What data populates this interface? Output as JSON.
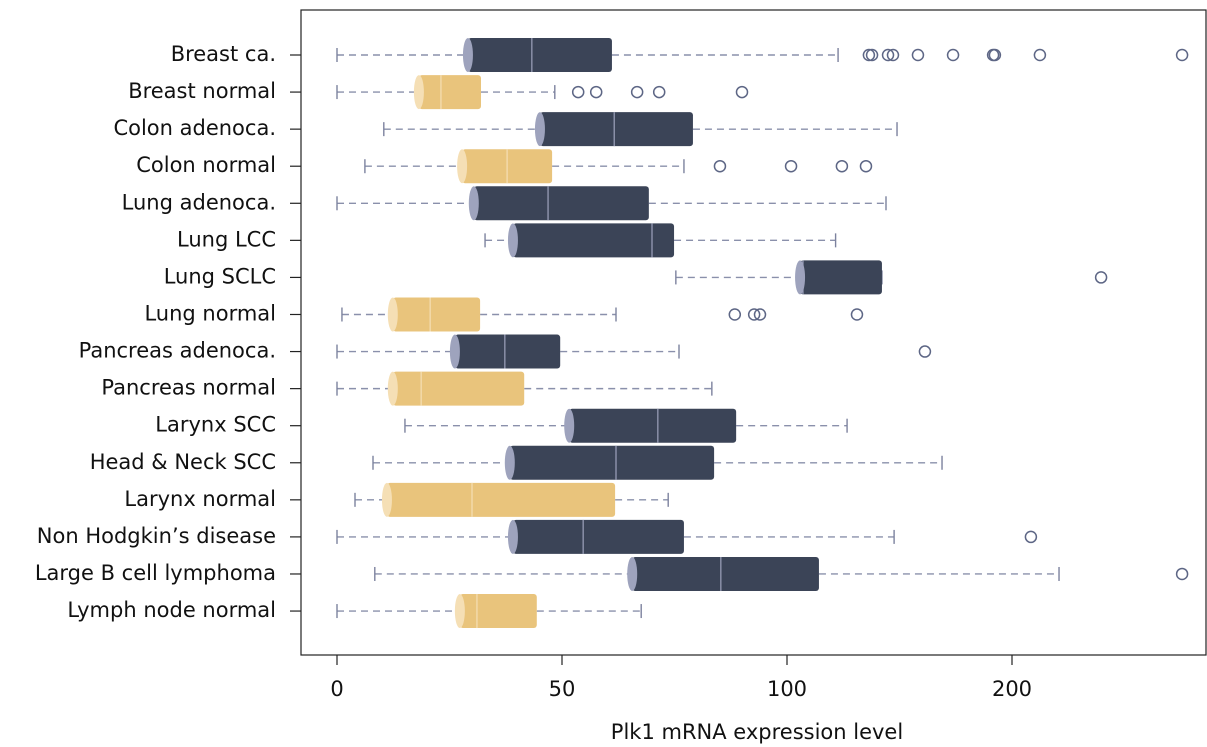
{
  "chart_data": {
    "type": "box",
    "orientation": "horizontal",
    "x_label": "Plk1 mRNA expression level",
    "categories": [
      "Breast ca.",
      "Breast normal",
      "Colon adenoca.",
      "Colon normal",
      "Lung adenoca.",
      "Lung LCC",
      "Lung SCLC",
      "Lung normal",
      "Pancreas adenoca.",
      "Pancreas normal",
      "Larynx SCC",
      "Head & Neck SCC",
      "Larynx normal",
      "Non Hodgkin’s disease",
      "Large B cell lymphoma",
      "Lymph node normal"
    ],
    "colors": [
      "#3b4457",
      "#e9c47c",
      "#3b4457",
      "#e9c47c",
      "#3b4457",
      "#3b4457",
      "#3b4457",
      "#e9c47c",
      "#3b4457",
      "#e9c47c",
      "#3b4457",
      "#3b4457",
      "#e9c47c",
      "#3b4457",
      "#3b4457",
      "#e9c47c"
    ],
    "boxes": [
      {
        "low": 0,
        "q1": 29.1,
        "median": 43.3,
        "q3": 61.1,
        "high": 122.7,
        "outliers": [
          136.4,
          137.8,
          144.9,
          147.1,
          158.2,
          173.8,
          191.6,
          192.4,
          212.4,
          275.6
        ]
      },
      {
        "low": 0,
        "q1": 18.2,
        "median": 23.1,
        "q3": 32,
        "high": 48.4,
        "outliers": [
          53.6,
          57.6,
          66.7,
          71.6,
          90
        ]
      },
      {
        "low": 10.4,
        "q1": 45.1,
        "median": 61.6,
        "q3": 79.1,
        "high": 148.9,
        "outliers": []
      },
      {
        "low": 6.2,
        "q1": 27.8,
        "median": 37.8,
        "q3": 47.8,
        "high": 77.1,
        "outliers": [
          85.1,
          101.8,
          124.4,
          135.1
        ]
      },
      {
        "low": 0,
        "q1": 30.4,
        "median": 46.9,
        "q3": 69.3,
        "high": 144,
        "outliers": []
      },
      {
        "low": 32.9,
        "q1": 39.1,
        "median": 70,
        "q3": 74.9,
        "high": 121.6,
        "outliers": []
      },
      {
        "low": 75.3,
        "q1": 105.8,
        "median": 107.1,
        "q3": 142.2,
        "high": 142.2,
        "outliers": [
          239.6
        ]
      },
      {
        "low": 1.1,
        "q1": 12.4,
        "median": 20.7,
        "q3": 31.8,
        "high": 62,
        "outliers": [
          88.4,
          92.7,
          94,
          131.1
        ]
      },
      {
        "low": 0,
        "q1": 26.2,
        "median": 37.3,
        "q3": 49.6,
        "high": 76,
        "outliers": [
          161.3
        ]
      },
      {
        "low": 0,
        "q1": 12.4,
        "median": 18.7,
        "q3": 41.6,
        "high": 83.3,
        "outliers": []
      },
      {
        "low": 15.1,
        "q1": 51.6,
        "median": 71.3,
        "q3": 88.7,
        "high": 126.7,
        "outliers": []
      },
      {
        "low": 8,
        "q1": 38.4,
        "median": 62,
        "q3": 83.8,
        "high": 168.9,
        "outliers": []
      },
      {
        "low": 4,
        "q1": 11.1,
        "median": 30,
        "q3": 61.8,
        "high": 73.6,
        "outliers": []
      },
      {
        "low": 0,
        "q1": 39.1,
        "median": 54.7,
        "q3": 77.1,
        "high": 147.6,
        "outliers": [
          208.4
        ]
      },
      {
        "low": 8.4,
        "q1": 65.6,
        "median": 85.3,
        "q3": 114.2,
        "high": 220.9,
        "outliers": [
          275.6
        ]
      },
      {
        "low": 0,
        "q1": 27.3,
        "median": 31.1,
        "q3": 44.4,
        "high": 67.6,
        "outliers": []
      }
    ],
    "xlim": [
      -8,
      287
    ],
    "xticks": [
      0,
      50,
      100,
      200
    ],
    "xscale": "broken"
  }
}
